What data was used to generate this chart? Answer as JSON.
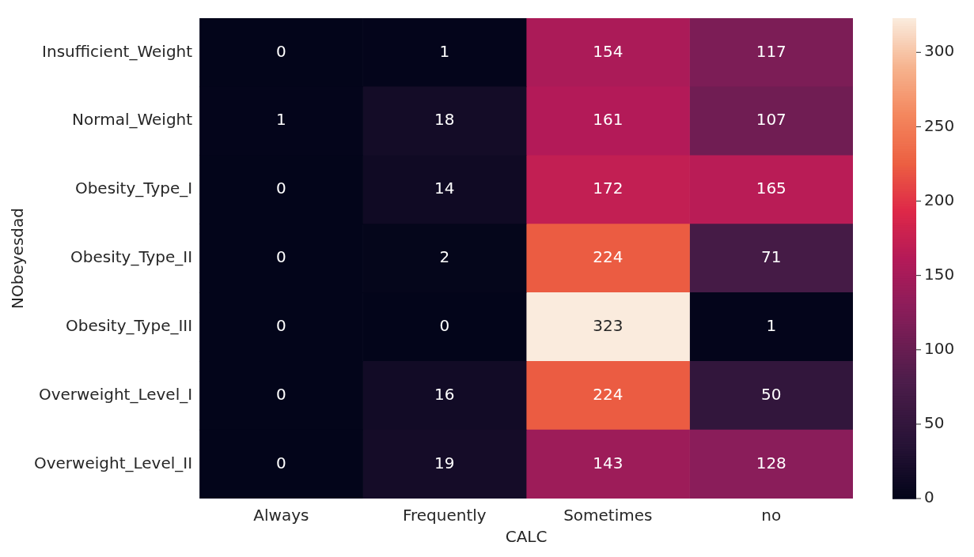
{
  "chart_data": {
    "type": "heatmap",
    "xlabel": "CALC",
    "ylabel": "NObeyesdad",
    "categories": [
      "Always",
      "Frequently",
      "Sometimes",
      "no"
    ],
    "y_categories": [
      "Insufficient_Weight",
      "Normal_Weight",
      "Obesity_Type_I",
      "Obesity_Type_II",
      "Obesity_Type_III",
      "Overweight_Level_I",
      "Overweight_Level_II"
    ],
    "cells": [
      [
        0,
        1,
        154,
        117
      ],
      [
        1,
        18,
        161,
        107
      ],
      [
        0,
        14,
        172,
        165
      ],
      [
        0,
        2,
        224,
        71
      ],
      [
        0,
        0,
        323,
        1
      ],
      [
        0,
        16,
        224,
        50
      ],
      [
        0,
        19,
        143,
        128
      ]
    ],
    "clim": [
      0,
      323
    ],
    "cticks": [
      0,
      50,
      100,
      150,
      200,
      250,
      300
    ],
    "data_labels": true
  }
}
